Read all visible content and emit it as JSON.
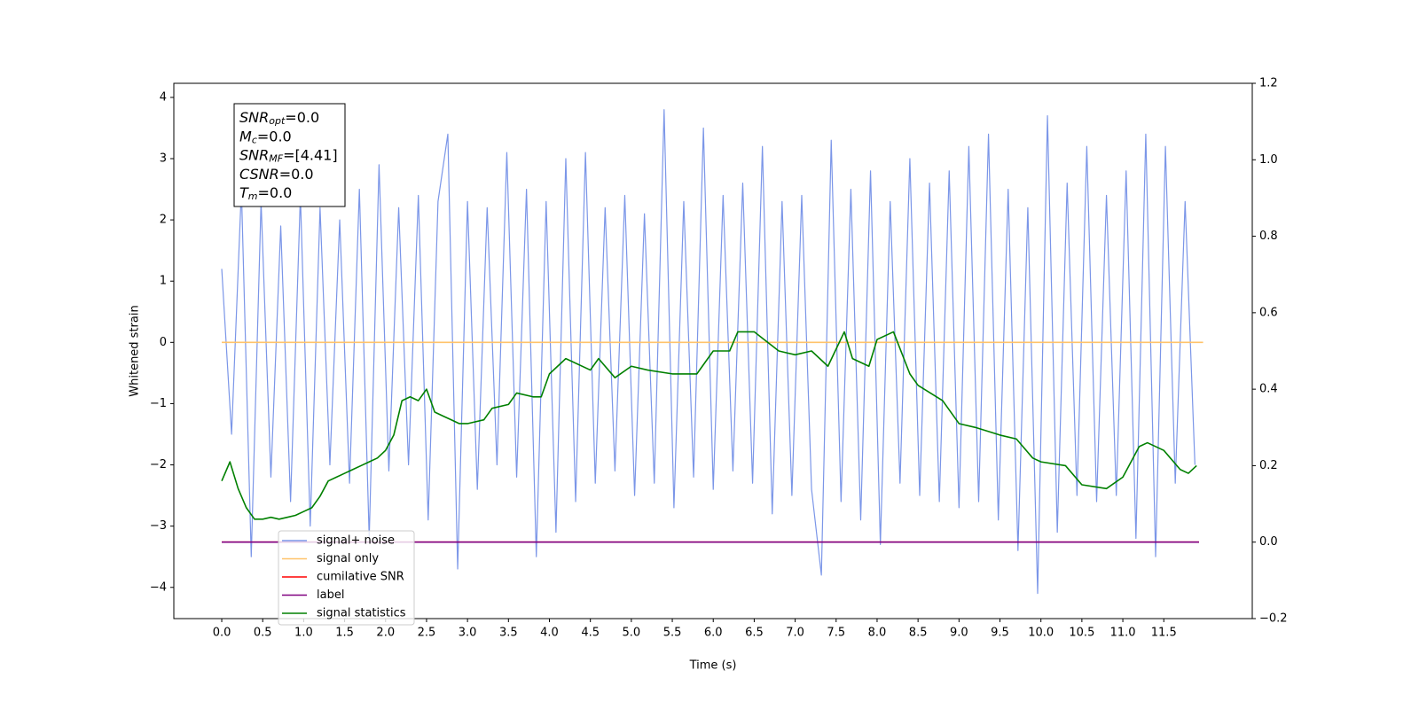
{
  "chart_data": {
    "type": "line",
    "xlabel": "Time (s)",
    "ylabel": "Whitened strain",
    "xlim": [
      -0.585,
      12.58
    ],
    "ylim": [
      -4.51,
      4.23
    ],
    "y2lim": [
      -0.2,
      1.2
    ],
    "xticks": [
      {
        "value": 0,
        "label": "0.0"
      },
      0.5,
      {
        "value": 1,
        "label": "1.0"
      },
      1.5,
      {
        "value": 2,
        "label": "2.0"
      },
      2.5,
      {
        "value": 3,
        "label": "3.0"
      },
      3.5,
      {
        "value": 4,
        "label": "4.0"
      },
      4.5,
      {
        "value": 5,
        "label": "5.0"
      },
      5.5,
      {
        "value": 6,
        "label": "6.0"
      },
      6.5,
      {
        "value": 7,
        "label": "7.0"
      },
      7.5,
      {
        "value": 8,
        "label": "8.0"
      },
      8.5,
      {
        "value": 9,
        "label": "9.0"
      },
      9.5,
      {
        "value": 10,
        "label": "10.0"
      },
      10.5,
      {
        "value": 11,
        "label": "11.0"
      },
      11.5
    ],
    "yticks": [
      {
        "value": -4,
        "label": "−4"
      },
      {
        "value": -3,
        "label": "−3"
      },
      {
        "value": -2,
        "label": "−2"
      },
      {
        "value": -1,
        "label": "−1"
      },
      0,
      1,
      2,
      3,
      4
    ],
    "y2ticks": [
      {
        "value": -0.2,
        "label": "−0.2"
      },
      {
        "value": 0,
        "label": "0.0"
      },
      0.2,
      0.4,
      0.6,
      0.8,
      {
        "value": 1,
        "label": "1.0"
      },
      1.2
    ],
    "grid": false,
    "legend": "lower left",
    "annotation": [
      {
        "text": "SNR",
        "sub": "opt",
        "value": "=0.0"
      },
      {
        "text": "M",
        "sub": "c",
        "value": "=0.0"
      },
      {
        "text": "SNR",
        "sub": "MF",
        "value": "=[4.41]"
      },
      {
        "text": "CSNR",
        "value": "=0.0"
      },
      {
        "text": "T",
        "sub": "m",
        "value": "=0.0"
      }
    ],
    "series": [
      {
        "name": "signal+ noise",
        "color": "#7b96e8",
        "x": [
          0,
          0.12,
          0.24,
          0.36,
          0.48,
          0.6,
          0.72,
          0.84,
          0.96,
          1.08,
          1.2,
          1.32,
          1.44,
          1.56,
          1.68,
          1.8,
          1.92,
          2.04,
          2.16,
          2.28,
          2.4,
          2.52,
          2.64,
          2.76,
          2.88,
          3.0,
          3.12,
          3.24,
          3.36,
          3.48,
          3.6,
          3.72,
          3.84,
          3.96,
          4.08,
          4.2,
          4.32,
          4.44,
          4.56,
          4.68,
          4.8,
          4.92,
          5.04,
          5.16,
          5.28,
          5.4,
          5.52,
          5.64,
          5.76,
          5.88,
          6.0,
          6.12,
          6.24,
          6.36,
          6.48,
          6.6,
          6.72,
          6.84,
          6.96,
          7.08,
          7.2,
          7.32,
          7.44,
          7.56,
          7.68,
          7.8,
          7.92,
          8.04,
          8.16,
          8.28,
          8.4,
          8.52,
          8.64,
          8.76,
          8.88,
          9.0,
          9.12,
          9.24,
          9.36,
          9.48,
          9.6,
          9.72,
          9.84,
          9.96,
          10.08,
          10.2,
          10.32,
          10.44,
          10.56,
          10.68,
          10.8,
          10.92,
          11.04,
          11.16,
          11.28,
          11.4,
          11.52,
          11.64,
          11.76,
          11.88
        ],
        "values": [
          1.2,
          -1.5,
          2.5,
          -3.5,
          2.3,
          -2.2,
          1.9,
          -2.6,
          2.4,
          -3.0,
          2.2,
          -2.0,
          2.0,
          -2.3,
          2.5,
          -3.2,
          2.9,
          -2.1,
          2.2,
          -2.0,
          2.4,
          -2.9,
          2.3,
          3.4,
          -3.7,
          2.3,
          -2.4,
          2.2,
          -2.0,
          3.1,
          -2.2,
          2.5,
          -3.5,
          2.3,
          -3.1,
          3.0,
          -2.6,
          3.1,
          -2.3,
          2.2,
          -2.1,
          2.4,
          -2.5,
          2.1,
          -2.3,
          3.8,
          -2.7,
          2.3,
          -2.2,
          3.5,
          -2.4,
          2.4,
          -2.1,
          2.6,
          -2.3,
          3.2,
          -2.8,
          2.3,
          -2.5,
          2.4,
          -2.4,
          -3.8,
          3.3,
          -2.6,
          2.5,
          -2.9,
          2.8,
          -3.3,
          2.3,
          -2.3,
          3.0,
          -2.5,
          2.6,
          -2.6,
          2.8,
          -2.7,
          3.2,
          -2.6,
          3.4,
          -2.9,
          2.5,
          -3.4,
          2.2,
          -4.1,
          3.7,
          -3.1,
          2.6,
          -2.5,
          3.2,
          -2.6,
          2.4,
          -2.5,
          2.8,
          -3.2,
          3.4,
          -3.5,
          3.2,
          -2.3,
          2.3,
          -2.0
        ]
      },
      {
        "name": "signal only",
        "color": "#ffc36b",
        "x": [
          0,
          11.98
        ],
        "values": [
          0,
          0
        ]
      },
      {
        "name": "cumilative SNR",
        "color": "#ff0000",
        "axis": "y2",
        "x": [
          0,
          11.93
        ],
        "values": [
          0,
          0
        ]
      },
      {
        "name": "label",
        "color": "#800080",
        "axis": "y2",
        "x": [
          0,
          11.93
        ],
        "values": [
          0,
          0
        ]
      },
      {
        "name": "signal statistics",
        "color": "#008000",
        "axis": "y2",
        "x": [
          0,
          0.1,
          0.2,
          0.3,
          0.4,
          0.5,
          0.6,
          0.7,
          0.8,
          0.9,
          1.0,
          1.1,
          1.2,
          1.3,
          1.4,
          1.5,
          1.6,
          1.7,
          1.8,
          1.9,
          2.0,
          2.1,
          2.2,
          2.3,
          2.4,
          2.5,
          2.6,
          2.7,
          2.8,
          2.9,
          3.0,
          3.2,
          3.3,
          3.5,
          3.6,
          3.8,
          3.9,
          4.0,
          4.2,
          4.5,
          4.6,
          4.8,
          5.0,
          5.2,
          5.5,
          5.8,
          6.0,
          6.2,
          6.3,
          6.5,
          6.8,
          7.0,
          7.2,
          7.4,
          7.6,
          7.7,
          7.9,
          8.0,
          8.2,
          8.4,
          8.5,
          8.8,
          9.0,
          9.2,
          9.5,
          9.7,
          9.9,
          10.0,
          10.3,
          10.5,
          10.8,
          11.0,
          11.2,
          11.3,
          11.5,
          11.7,
          11.8,
          11.9
        ],
        "values": [
          0.16,
          0.21,
          0.14,
          0.09,
          0.06,
          0.06,
          0.065,
          0.06,
          0.065,
          0.07,
          0.08,
          0.09,
          0.12,
          0.16,
          0.17,
          0.18,
          0.19,
          0.2,
          0.21,
          0.22,
          0.24,
          0.28,
          0.37,
          0.38,
          0.37,
          0.4,
          0.34,
          0.33,
          0.32,
          0.31,
          0.31,
          0.32,
          0.35,
          0.36,
          0.39,
          0.38,
          0.38,
          0.44,
          0.48,
          0.45,
          0.48,
          0.43,
          0.46,
          0.45,
          0.44,
          0.44,
          0.5,
          0.5,
          0.55,
          0.55,
          0.5,
          0.49,
          0.5,
          0.46,
          0.55,
          0.48,
          0.46,
          0.53,
          0.55,
          0.44,
          0.41,
          0.37,
          0.31,
          0.3,
          0.28,
          0.27,
          0.22,
          0.21,
          0.2,
          0.15,
          0.14,
          0.17,
          0.25,
          0.26,
          0.24,
          0.19,
          0.18,
          0.2
        ]
      }
    ]
  }
}
